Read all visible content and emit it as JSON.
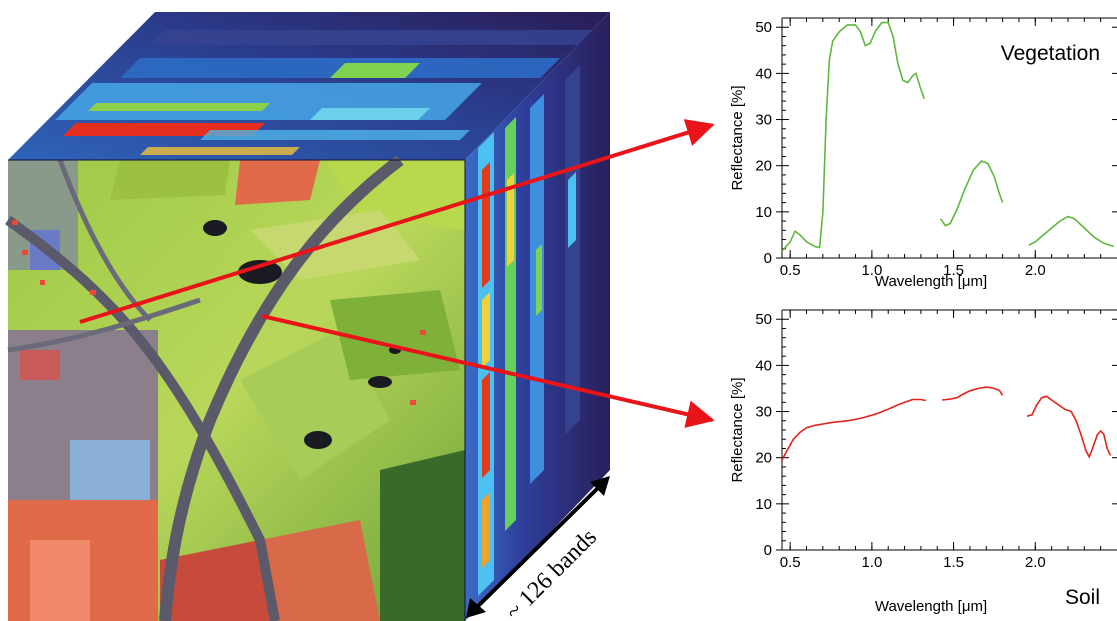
{
  "cube": {
    "bands_label": "~ 126 bands"
  },
  "colors": {
    "arrow": "#e8141a",
    "vegetation": "#5fb83c",
    "soil": "#e2231a"
  },
  "chart_data": [
    {
      "type": "line",
      "panel_label": "Vegetation",
      "xlabel": "Wavelength [μm]",
      "ylabel": "Reflectance [%]",
      "xlim": [
        0.45,
        2.5
      ],
      "ylim": [
        0,
        52
      ],
      "xticks": [
        "0.5",
        "1.0",
        "1.5",
        "2.0"
      ],
      "xtick_values": [
        0.5,
        1.0,
        1.5,
        2.0
      ],
      "yticks": [
        "0",
        "10",
        "20",
        "30",
        "40",
        "50"
      ],
      "ytick_values": [
        0,
        10,
        20,
        30,
        40,
        50
      ],
      "series": [
        {
          "color": "#5fb83c",
          "segments": [
            [
              [
                0.45,
                1.5
              ],
              [
                0.5,
                3.5
              ],
              [
                0.53,
                5.8
              ],
              [
                0.56,
                5.0
              ],
              [
                0.6,
                3.5
              ],
              [
                0.65,
                2.5
              ],
              [
                0.68,
                2.3
              ],
              [
                0.7,
                10
              ],
              [
                0.72,
                30
              ],
              [
                0.74,
                43
              ],
              [
                0.76,
                47
              ],
              [
                0.8,
                49
              ],
              [
                0.85,
                50.5
              ],
              [
                0.9,
                50.5
              ],
              [
                0.93,
                49
              ],
              [
                0.96,
                46
              ],
              [
                0.99,
                46.5
              ],
              [
                1.02,
                49
              ],
              [
                1.06,
                51
              ],
              [
                1.1,
                51
              ],
              [
                1.13,
                48
              ],
              [
                1.16,
                42
              ],
              [
                1.19,
                38.5
              ],
              [
                1.22,
                38
              ],
              [
                1.25,
                39.5
              ],
              [
                1.27,
                40
              ],
              [
                1.3,
                36.5
              ],
              [
                1.32,
                34.5
              ]
            ],
            [
              [
                1.42,
                8.5
              ],
              [
                1.45,
                7.0
              ],
              [
                1.48,
                7.5
              ],
              [
                1.52,
                10.5
              ],
              [
                1.57,
                15
              ],
              [
                1.62,
                19
              ],
              [
                1.67,
                21
              ],
              [
                1.71,
                20.5
              ],
              [
                1.75,
                17.5
              ],
              [
                1.78,
                14
              ],
              [
                1.8,
                12
              ]
            ],
            [
              [
                1.96,
                2.8
              ],
              [
                2.0,
                3.5
              ],
              [
                2.05,
                5
              ],
              [
                2.1,
                6.5
              ],
              [
                2.15,
                8
              ],
              [
                2.2,
                9
              ],
              [
                2.24,
                8.5
              ],
              [
                2.3,
                6.5
              ],
              [
                2.36,
                4.5
              ],
              [
                2.42,
                3.2
              ],
              [
                2.48,
                2.5
              ]
            ]
          ]
        }
      ]
    },
    {
      "type": "line",
      "panel_label": "Soil",
      "xlabel": "Wavelength [μm]",
      "ylabel": "Reflectance [%]",
      "xlim": [
        0.45,
        2.5
      ],
      "ylim": [
        0,
        52
      ],
      "xticks": [
        "0.5",
        "1.0",
        "1.5",
        "2.0"
      ],
      "xtick_values": [
        0.5,
        1.0,
        1.5,
        2.0
      ],
      "yticks": [
        "0",
        "10",
        "20",
        "30",
        "40",
        "50"
      ],
      "ytick_values": [
        0,
        10,
        20,
        30,
        40,
        50
      ],
      "series": [
        {
          "color": "#e2231a",
          "segments": [
            [
              [
                0.45,
                19.5
              ],
              [
                0.48,
                21.5
              ],
              [
                0.52,
                24
              ],
              [
                0.56,
                25.5
              ],
              [
                0.6,
                26.5
              ],
              [
                0.65,
                27
              ],
              [
                0.7,
                27.3
              ],
              [
                0.75,
                27.6
              ],
              [
                0.8,
                27.8
              ],
              [
                0.85,
                28
              ],
              [
                0.9,
                28.3
              ],
              [
                0.95,
                28.7
              ],
              [
                1.0,
                29.2
              ],
              [
                1.05,
                29.8
              ],
              [
                1.1,
                30.5
              ],
              [
                1.15,
                31.3
              ],
              [
                1.2,
                32
              ],
              [
                1.25,
                32.6
              ],
              [
                1.3,
                32.6
              ],
              [
                1.33,
                32.4
              ]
            ],
            [
              [
                1.43,
                32.5
              ],
              [
                1.48,
                32.7
              ],
              [
                1.52,
                33
              ],
              [
                1.56,
                33.8
              ],
              [
                1.6,
                34.5
              ],
              [
                1.65,
                35
              ],
              [
                1.7,
                35.3
              ],
              [
                1.74,
                35.1
              ],
              [
                1.78,
                34.6
              ],
              [
                1.8,
                33.5
              ]
            ],
            [
              [
                1.95,
                29
              ],
              [
                1.98,
                29.3
              ],
              [
                2.01,
                31.5
              ],
              [
                2.04,
                33
              ],
              [
                2.07,
                33.3
              ],
              [
                2.1,
                32.5
              ],
              [
                2.14,
                31.5
              ],
              [
                2.18,
                30.5
              ],
              [
                2.22,
                30
              ],
              [
                2.25,
                28
              ],
              [
                2.28,
                25
              ],
              [
                2.31,
                21.5
              ],
              [
                2.33,
                20.2
              ],
              [
                2.35,
                22
              ],
              [
                2.38,
                25
              ],
              [
                2.4,
                25.8
              ],
              [
                2.42,
                25
              ],
              [
                2.44,
                22
              ],
              [
                2.46,
                20.5
              ]
            ]
          ]
        }
      ]
    }
  ]
}
